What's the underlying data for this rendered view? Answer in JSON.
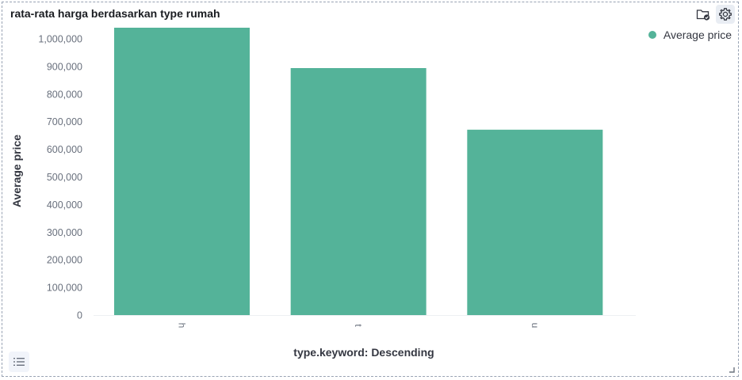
{
  "panel": {
    "title": "rata-rata harga berdasarkan type rumah"
  },
  "toolbar": {
    "folder_icon": "folder-check-icon",
    "settings_icon": "gear-icon",
    "legend_toggle_icon": "list-icon"
  },
  "colors": {
    "bar": "#54b399",
    "axis_text": "#69707d",
    "axis_title": "#343741",
    "grid_line": "#eef0f3"
  },
  "chart_data": {
    "type": "bar",
    "categories": [
      "h",
      "t",
      "u"
    ],
    "series": [
      {
        "name": "Average price",
        "values": [
          1042000,
          894000,
          671000
        ]
      }
    ],
    "xlabel": "type.keyword: Descending",
    "ylabel": "Average price",
    "ylim": [
      0,
      1000000
    ],
    "yticks": [
      0,
      100000,
      200000,
      300000,
      400000,
      500000,
      600000,
      700000,
      800000,
      900000,
      1000000
    ],
    "ytick_labels": [
      "0",
      "100,000",
      "200,000",
      "300,000",
      "400,000",
      "500,000",
      "600,000",
      "700,000",
      "800,000",
      "900,000",
      "1,000,000"
    ],
    "legend_position": "top-right",
    "x_tick_label_rotation": "rotated"
  }
}
